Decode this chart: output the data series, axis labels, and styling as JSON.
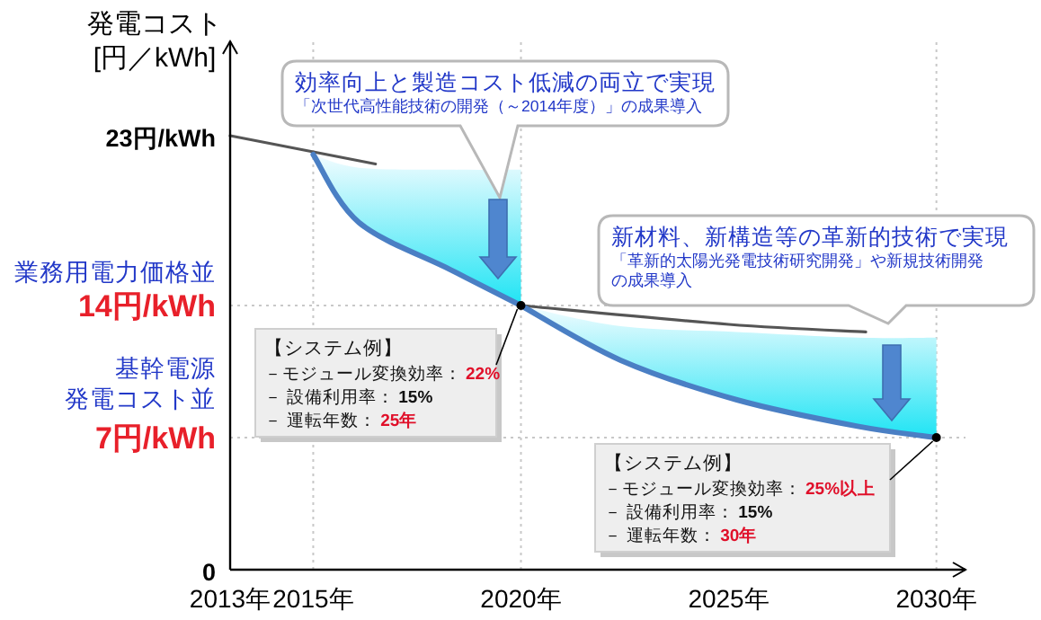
{
  "chart_data": {
    "type": "line",
    "ylabel": "発電コスト\n[円／kWh]",
    "xlim": [
      2013,
      2030.7
    ],
    "ylim": [
      0,
      28
    ],
    "xticks": [
      {
        "value": 2013,
        "label": "2013年"
      },
      {
        "value": 2015,
        "label": "2015年"
      },
      {
        "value": 2020,
        "label": "2020年"
      },
      {
        "value": 2025,
        "label": "2025年"
      },
      {
        "value": 2030,
        "label": "2030年"
      }
    ],
    "yticks": [
      0,
      {
        "value": 7,
        "label": "7円/kWh"
      },
      {
        "value": 14,
        "label": "14円/kWh"
      },
      {
        "value": 23,
        "label": "23円/kWh"
      }
    ],
    "series": [
      {
        "color": "#555555",
        "x": [
          2013,
          2016.5
        ],
        "values": [
          23,
          21.5
        ]
      },
      {
        "color": "#555555",
        "x": [
          2020,
          2025,
          2028.3
        ],
        "values": [
          14,
          13.0,
          12.6
        ]
      },
      {
        "color": "#4a7fc4",
        "x": [
          2015,
          2016.1,
          2018.3,
          2020
        ],
        "values": [
          22,
          18.4,
          15.9,
          14
        ],
        "lower": [
          22,
          18.4,
          15.9,
          14
        ],
        "upper": [
          22,
          21.3,
          21.2,
          21.2
        ]
      },
      {
        "color": "#4a7fc4",
        "x": [
          2020,
          2022.4,
          2025.2,
          2028.1,
          2030
        ],
        "values": [
          14,
          11.1,
          9.0,
          7.6,
          7
        ],
        "lower": [
          14,
          11.1,
          9.0,
          7.6,
          7
        ],
        "upper": [
          14,
          12.9,
          12.6,
          12.3,
          12.3
        ]
      },
      {
        "type": "scatter",
        "color": "#000000",
        "x": [
          2020,
          2030
        ],
        "values": [
          14,
          7
        ]
      }
    ],
    "ref_lines": [
      {
        "axis": "x",
        "value": 2015,
        "color": "#c8c8c8",
        "line_style": "dotted"
      },
      {
        "axis": "x",
        "value": 2020,
        "color": "#c8c8c8",
        "line_style": "dotted"
      },
      {
        "axis": "x",
        "value": 2030,
        "color": "#c8c8c8",
        "line_style": "dotted"
      },
      {
        "axis": "y",
        "value": 14,
        "color": "#c8c8c8",
        "line_style": "dotted"
      },
      {
        "axis": "y",
        "value": 7,
        "color": "#c8c8c8",
        "line_style": "dotted"
      }
    ],
    "annotations": [
      "業務用電力価格並",
      "基幹電源",
      "発電コスト並",
      "効率向上と製造コスト低減の両立で実現",
      "「次世代高性能技術の開発（～2014年度）」の成果導入",
      "新材料、新構造等の革新的技術で実現",
      "「革新的太陽光発電技術研究開発」や新規技術開発",
      "の成果導入",
      "【システム例】",
      "－モジュール変換効率：",
      "22%",
      "－ 設備利用率：",
      "15%",
      "－ 運転年数：",
      "25年",
      "【システム例】",
      "－モジュール変換効率：",
      "25%以上",
      "－ 設備利用率：",
      "15%",
      "－ 運転年数：",
      "30年"
    ]
  }
}
